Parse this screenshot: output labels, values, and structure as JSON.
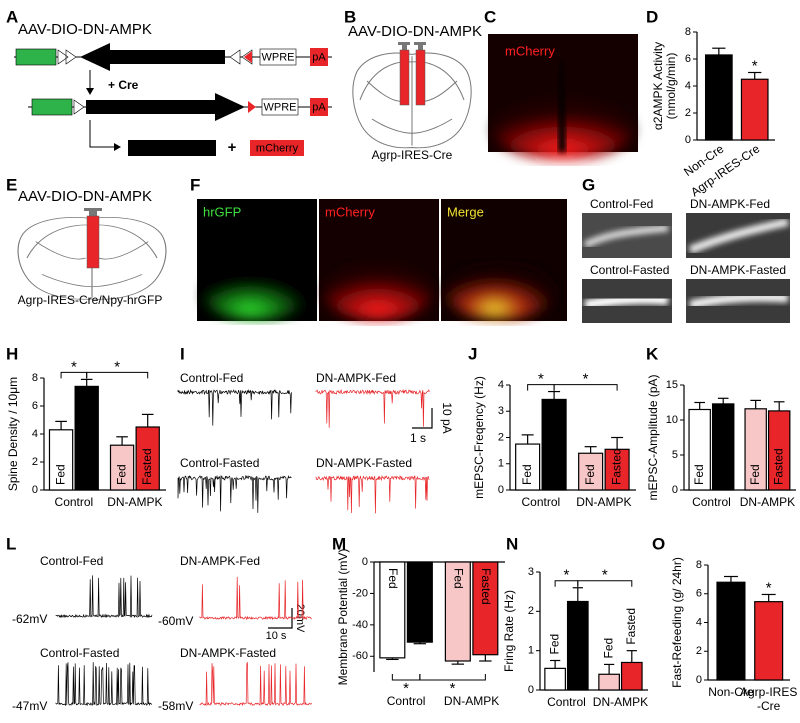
{
  "figure": {
    "panel_letters": [
      "A",
      "B",
      "C",
      "D",
      "E",
      "F",
      "G",
      "H",
      "I",
      "J",
      "K",
      "L",
      "M",
      "N",
      "O"
    ],
    "a": {
      "construct": "AAV-DIO-DN-AMPK",
      "wpre": "WPRE",
      "pa": "pA",
      "cre": "+ Cre",
      "wpre_2": "WPRE",
      "pa_2": "pA",
      "plus": "+",
      "mcherry": "mCherry"
    },
    "b": {
      "construct": "AAV-DIO-DN-AMPK",
      "mouse": "Agrp-IRES-Cre"
    },
    "c": {
      "label": "mCherry"
    },
    "e": {
      "construct": "AAV-DIO-DN-AMPK",
      "mouse": "Agrp-IRES-Cre/Npy-hrGFP"
    },
    "f": {
      "labels": [
        "hrGFP",
        "mCherry",
        "Merge"
      ]
    },
    "g": {
      "labels": [
        "Control-Fed",
        "DN-AMPK-Fed",
        "Control-Fasted",
        "DN-AMPK-Fasted"
      ]
    },
    "i": {
      "labels": [
        "Control-Fed",
        "DN-AMPK-Fed",
        "Control-Fasted",
        "DN-AMPK-Fasted"
      ],
      "scale_y": "10 pA",
      "scale_x": "1 s"
    },
    "l": {
      "labels": [
        "Control-Fed",
        "DN-AMPK-Fed",
        "Control-Fasted",
        "DN-AMPK-Fasted"
      ],
      "potentials": [
        "-62mV",
        "-60mV",
        "-47mV",
        "-58mV"
      ],
      "scale_x": "10 s",
      "scale_y": "20mV"
    }
  },
  "chart_data": [
    {
      "type": "bar",
      "ylabel": [
        "α2AMPK Activity",
        "(nmol/g/min)"
      ],
      "categories": [
        [
          "Non-Cre"
        ],
        [
          "Agrp-IRES-Cre"
        ]
      ],
      "values": [
        6.3,
        4.5
      ],
      "errors": [
        0.5,
        0.5
      ],
      "colors": [
        "#000000",
        "#e8262a"
      ],
      "ylim": [
        0,
        8
      ],
      "yticks": [
        0,
        2,
        4,
        6,
        8
      ],
      "stars": [
        "*"
      ]
    },
    {
      "type": "bar",
      "ylabel": [
        "Spine Density / 10μm"
      ],
      "groups": [
        "Control",
        "DN-AMPK"
      ],
      "bar_labels": [
        "Fed",
        null,
        "Fed",
        "Fasted"
      ],
      "values": [
        4.3,
        7.4,
        3.2,
        4.5
      ],
      "errors": [
        0.6,
        0.5,
        0.6,
        0.9
      ],
      "colors": [
        "#ffffff",
        "#000000",
        "#f7c6c6",
        "#e8262a"
      ],
      "ylim": [
        0,
        8
      ],
      "yticks": [
        0,
        2,
        4,
        6,
        8
      ],
      "stars": [
        "*",
        "*"
      ]
    },
    {
      "type": "bar",
      "ylabel": [
        "mEPSC-Freqency (Hz)"
      ],
      "groups": [
        "Control",
        "DN-AMPK"
      ],
      "bar_labels": [
        "Fed",
        null,
        "Fed",
        "Fasted"
      ],
      "values": [
        1.75,
        3.45,
        1.4,
        1.55
      ],
      "errors": [
        0.35,
        0.3,
        0.25,
        0.45
      ],
      "colors": [
        "#ffffff",
        "#000000",
        "#f7c6c6",
        "#e8262a"
      ],
      "ylim": [
        0,
        4
      ],
      "yticks": [
        0,
        1,
        2,
        3,
        4
      ],
      "stars": [
        "*",
        "*"
      ]
    },
    {
      "type": "bar",
      "ylabel": [
        "mEPSC-Amplitude (pA)"
      ],
      "groups": [
        "Control",
        "DN-AMPK"
      ],
      "bar_labels": [
        "Fed",
        null,
        "Fed",
        "Fasted"
      ],
      "values": [
        11.5,
        12.3,
        11.6,
        11.3
      ],
      "errors": [
        1.0,
        0.8,
        1.2,
        1.3
      ],
      "colors": [
        "#ffffff",
        "#000000",
        "#f7c6c6",
        "#e8262a"
      ],
      "ylim": [
        0,
        15
      ],
      "yticks": [
        0,
        5,
        10,
        15
      ]
    },
    {
      "type": "bar",
      "ylabel": [
        "Membrane Potential (mV)"
      ],
      "groups": [
        "Control",
        "DN-AMPK"
      ],
      "bar_labels": [
        "Fed",
        null,
        "Fed",
        "Fasted"
      ],
      "values": [
        -61,
        -51,
        -63,
        -59
      ],
      "errors": [
        1,
        1,
        2,
        4
      ],
      "colors": [
        "#ffffff",
        "#000000",
        "#f7c6c6",
        "#e8262a"
      ],
      "ylim": [
        -70,
        0
      ],
      "yticks": [
        0,
        -20,
        -40,
        -60
      ],
      "stars": [
        "*",
        "*"
      ]
    },
    {
      "type": "bar",
      "ylabel": [
        "Fring Rate (Hz)"
      ],
      "groups": [
        "Control",
        "DN-AMPK"
      ],
      "bar_labels": [
        "Fed",
        null,
        "Fed",
        "Fasted"
      ],
      "values": [
        0.55,
        2.25,
        0.4,
        0.7
      ],
      "errors": [
        0.2,
        0.35,
        0.25,
        0.3
      ],
      "colors": [
        "#ffffff",
        "#000000",
        "#f7c6c6",
        "#e8262a"
      ],
      "ylim": [
        0,
        3
      ],
      "yticks": [
        0,
        1,
        2,
        3
      ],
      "stars": [
        "*",
        "*"
      ]
    },
    {
      "type": "bar",
      "ylabel": [
        "Fast-Refeeding (g/ 24hr)"
      ],
      "categories": [
        [
          "Non-Cre"
        ],
        [
          "Agrp-IRES",
          "-Cre"
        ]
      ],
      "values": [
        6.8,
        5.45
      ],
      "errors": [
        0.4,
        0.5
      ],
      "colors": [
        "#000000",
        "#e8262a"
      ],
      "ylim": [
        0,
        8
      ],
      "yticks": [
        0,
        2,
        4,
        6,
        8
      ],
      "stars": [
        "*"
      ]
    }
  ]
}
